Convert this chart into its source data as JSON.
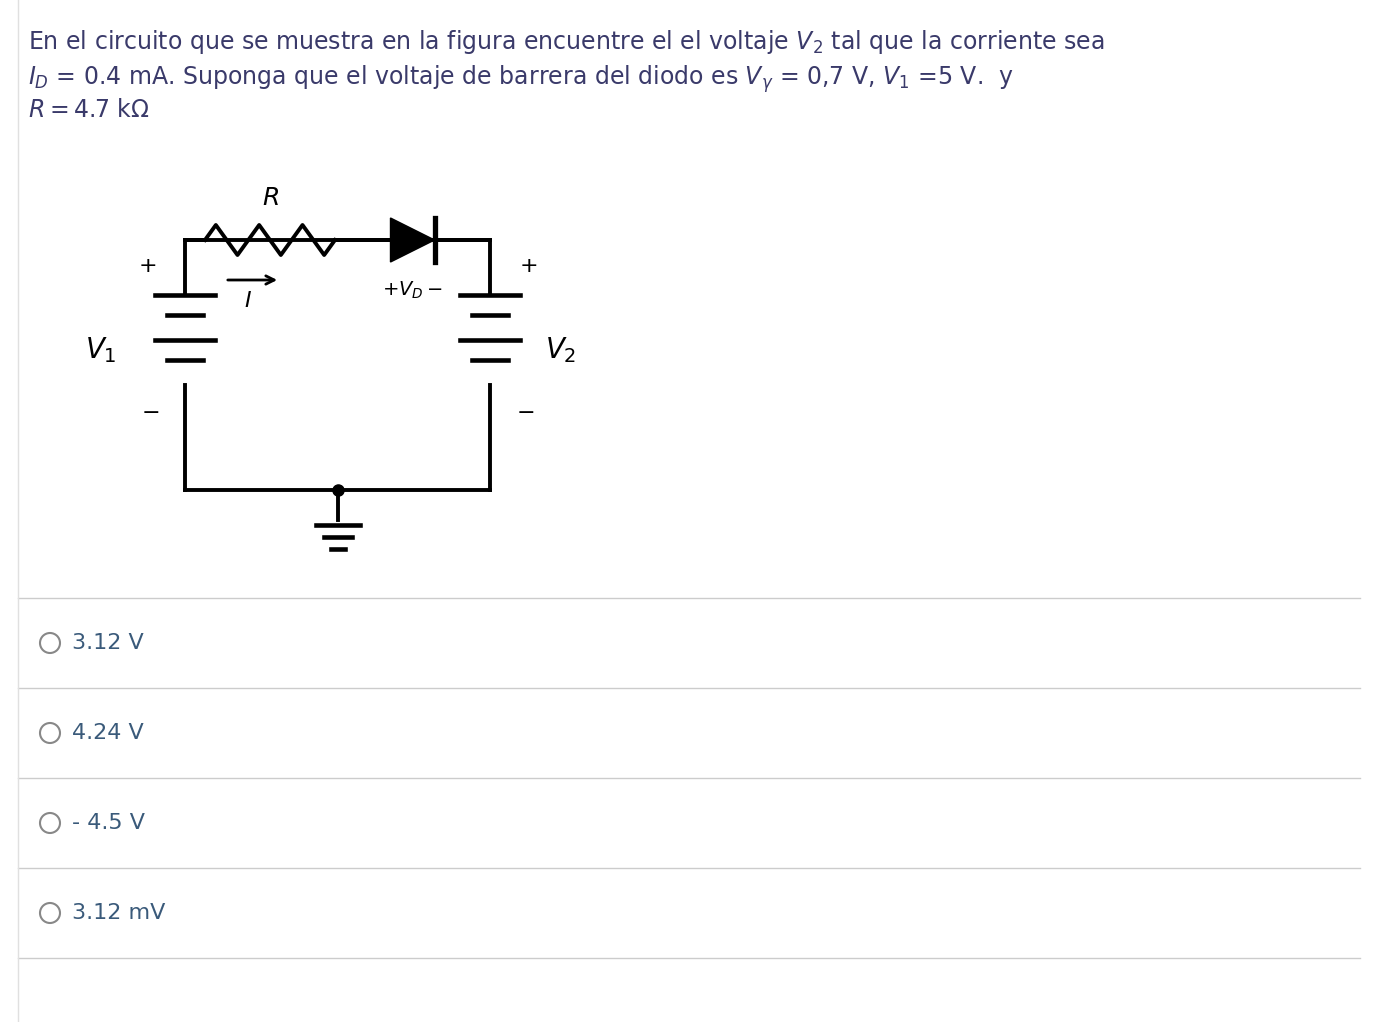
{
  "bg_color": "#ffffff",
  "text_color": "#3a3a6a",
  "line_color": "#000000",
  "sep_color": "#cccccc",
  "option_text_color": "#3a5a7a",
  "title_lines": [
    "En el circuito que se muestra en la figura encuentre el el voltaje $V_2$ tal que la corriente sea",
    "$I_D$ = 0.4 mA. Suponga que el voltaje de barrera del diodo es $V_{\\gamma}$ = 0,7 V, $V_1$ =5 V.  y",
    "$R = 4.7$ k$\\Omega$"
  ],
  "options": [
    "3.12 V",
    "4.24 V",
    "- 4.5 V",
    "3.12 mV"
  ],
  "fig_width": 13.78,
  "fig_height": 10.22
}
